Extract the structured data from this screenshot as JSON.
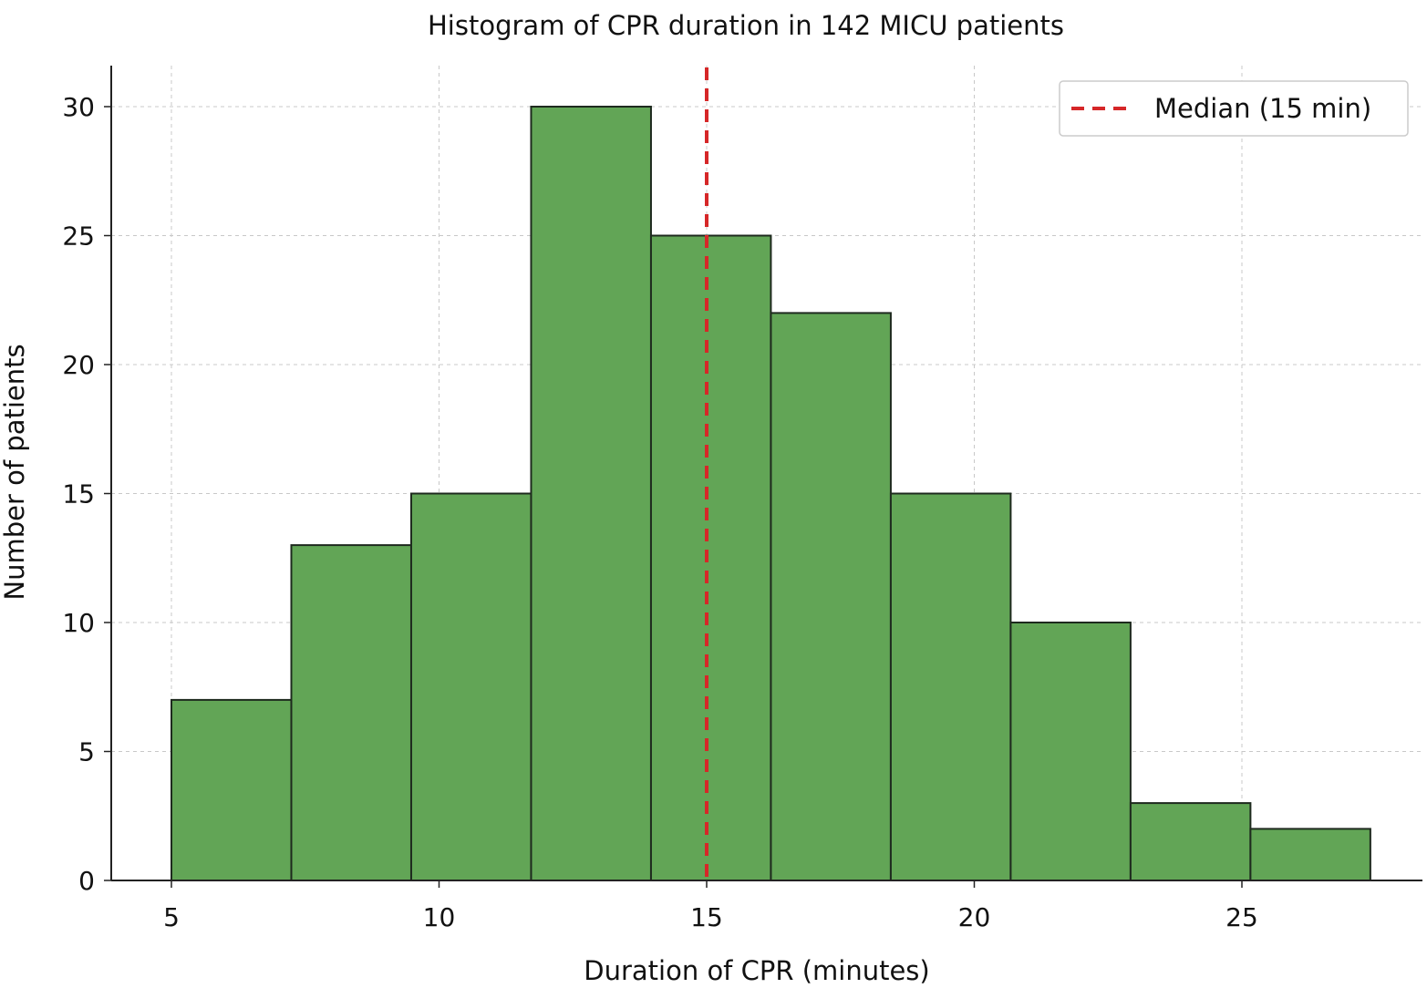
{
  "chart_data": {
    "type": "bar",
    "subtype": "histogram",
    "title": "Histogram of CPR duration in 142 MICU patients",
    "xlabel": "Duration of CPR (minutes)",
    "ylabel": "Number of patients",
    "bins": [
      {
        "start": 5.0,
        "end": 7.24,
        "count": 7
      },
      {
        "start": 7.24,
        "end": 9.48,
        "count": 13
      },
      {
        "start": 9.48,
        "end": 11.72,
        "count": 15
      },
      {
        "start": 11.72,
        "end": 13.96,
        "count": 30
      },
      {
        "start": 13.96,
        "end": 16.2,
        "count": 25
      },
      {
        "start": 16.2,
        "end": 18.44,
        "count": 22
      },
      {
        "start": 18.44,
        "end": 20.68,
        "count": 15
      },
      {
        "start": 20.68,
        "end": 22.92,
        "count": 10
      },
      {
        "start": 22.92,
        "end": 25.16,
        "count": 3
      },
      {
        "start": 25.16,
        "end": 27.4,
        "count": 2
      }
    ],
    "xlim": [
      4.0,
      28.5
    ],
    "ylim": [
      0,
      31.5
    ],
    "xticks": [
      5,
      10,
      15,
      20,
      25
    ],
    "xtick_labels": [
      "5",
      "10",
      "15",
      "20",
      "25"
    ],
    "yticks": [
      0,
      5,
      10,
      15,
      20,
      25,
      30
    ],
    "ytick_labels": [
      "0",
      "5",
      "10",
      "15",
      "20",
      "25",
      "30"
    ],
    "grid": true,
    "bar_color": "#62a556",
    "median": {
      "value": 15,
      "label": "Median (15 min)",
      "color": "#d62728"
    },
    "legend_position": "top-right"
  }
}
